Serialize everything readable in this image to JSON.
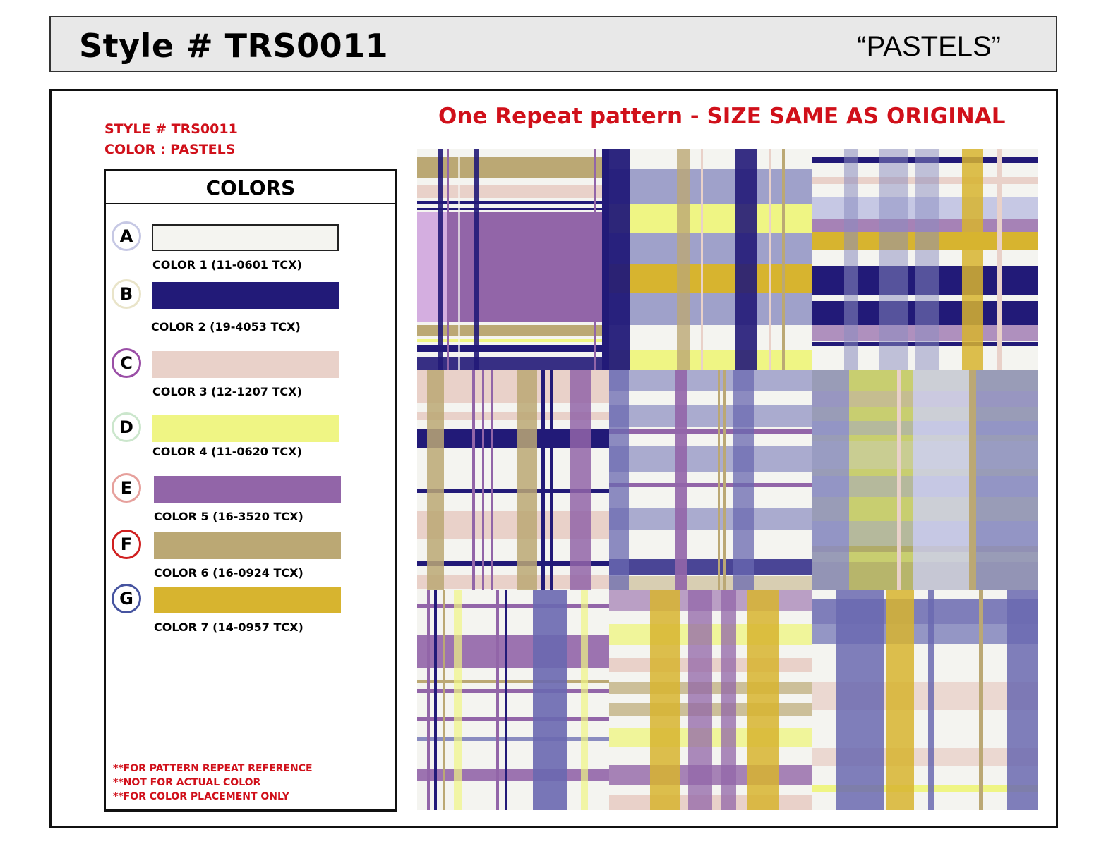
{
  "header": {
    "title": "Style # TRS0011",
    "subtitle": "“PASTELS”"
  },
  "style_info": {
    "style_line": "STYLE # TRS0011",
    "color_line": "COLOR : PASTELS"
  },
  "colors_panel": {
    "title": "COLORS",
    "swatches": [
      {
        "letter": "A",
        "label": "COLOR 1 (11-0601 TCX)",
        "color": "#f4f4f0",
        "ring": "#c6c8e4"
      },
      {
        "letter": "B",
        "label": "COLOR 2 (19-4053 TCX)",
        "color": "#221a78",
        "ring": "#e9e4c9"
      },
      {
        "letter": "C",
        "label": "COLOR 3 (12-1207 TCX)",
        "color": "#e9d1c9",
        "ring": "#9a4ea6"
      },
      {
        "letter": "D",
        "label": "COLOR 4 (11-0620 TCX)",
        "color": "#eff584",
        "ring": "#cbe6cc"
      },
      {
        "letter": "E",
        "label": "COLOR 5 (16-3520 TCX)",
        "color": "#9265a8",
        "ring": "#e6a09c"
      },
      {
        "letter": "F",
        "label": "COLOR 6 (16-0924 TCX)",
        "color": "#bba874",
        "ring": "#d02020"
      },
      {
        "letter": "G",
        "label": "COLOR 7 (14-0957 TCX)",
        "color": "#d7b42f",
        "ring": "#4654a0"
      }
    ],
    "notes": [
      "**FOR PATTERN REPEAT REFERENCE",
      "**NOT FOR ACTUAL COLOR",
      "**FOR COLOR PLACEMENT ONLY"
    ]
  },
  "repeat_title": "One Repeat pattern - SIZE SAME AS ORIGINAL"
}
